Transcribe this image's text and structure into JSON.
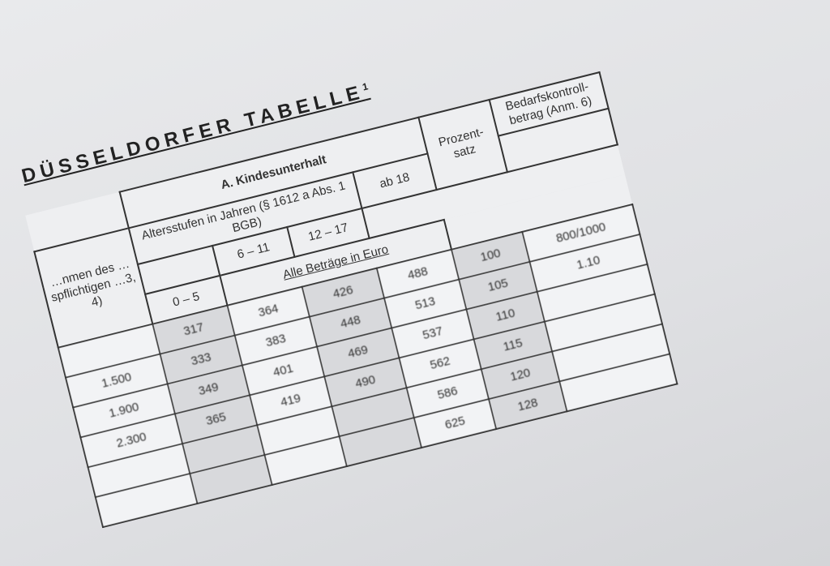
{
  "title": "DÜSSELDORFER TABELLE",
  "title_footnote": "1",
  "section": "A. Kindesunterhalt",
  "income_header": "…nmen des …spflichtigen …3, 4)",
  "age_header": "Altersstufen in Jahren (§ 1612 a Abs. 1 BGB)",
  "age_groups": [
    "0 – 5",
    "6 – 11",
    "12 – 17",
    "ab 18"
  ],
  "percent_header": "Prozent-satz",
  "control_header": "Bedarfskontroll-betrag (Anm. 6)",
  "currency_note": "Alle Beträge in Euro",
  "rows": [
    {
      "income": "",
      "values": [
        "317",
        "364",
        "426",
        "488"
      ],
      "percent": "100",
      "control": "800/1000"
    },
    {
      "income": "1.500",
      "values": [
        "333",
        "383",
        "448",
        "513"
      ],
      "percent": "105",
      "control": "1.10"
    },
    {
      "income": "1.900",
      "values": [
        "349",
        "401",
        "469",
        "537"
      ],
      "percent": "110",
      "control": ""
    },
    {
      "income": "2.300",
      "values": [
        "365",
        "419",
        "490",
        "562"
      ],
      "percent": "115",
      "control": ""
    },
    {
      "income": "",
      "values": [
        "",
        "",
        "",
        "586"
      ],
      "percent": "120",
      "control": ""
    },
    {
      "income": "",
      "values": [
        "",
        "",
        "",
        "625"
      ],
      "percent": "128",
      "control": ""
    }
  ]
}
